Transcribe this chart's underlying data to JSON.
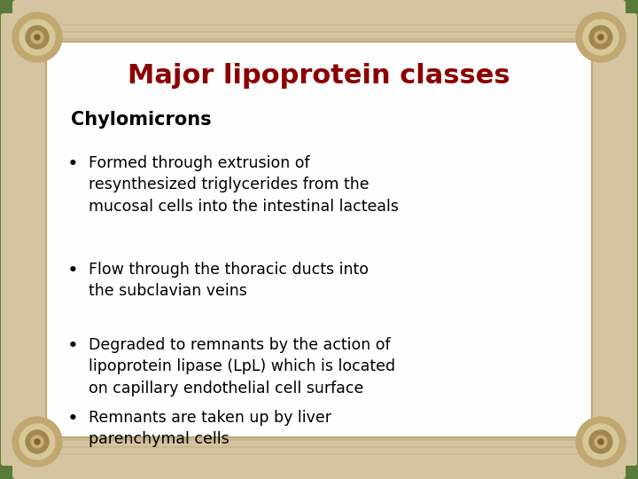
{
  "title": "Major lipoprotein classes",
  "title_color": "#8B0000",
  "subtitle": "Chylomicrons",
  "subtitle_color": "#000000",
  "bullets": [
    "Formed through extrusion of\nresynthesized triglycerides from the\nmucosal cells into the intestinal lacteals",
    "Flow through the thoracic ducts into\nthe subclavian veins",
    "Degraded to remnants by the action of\nlipoprotein lipase (LpL) which is located\non capillary endothelial cell surface",
    "Remnants are taken up by liver\nparenchymal cells"
  ],
  "bullet_color": "#000000",
  "outer_bg": "#5A7A3A",
  "scroll_color": "#D4C4A0",
  "scroll_dark": "#B8A880",
  "inner_bg_color": "#FEFEFE",
  "border_color": "#C0A878",
  "title_fontsize": 22,
  "subtitle_fontsize": 15,
  "bullet_fontsize": 12.5,
  "fig_width": 7.2,
  "fig_height": 5.4
}
